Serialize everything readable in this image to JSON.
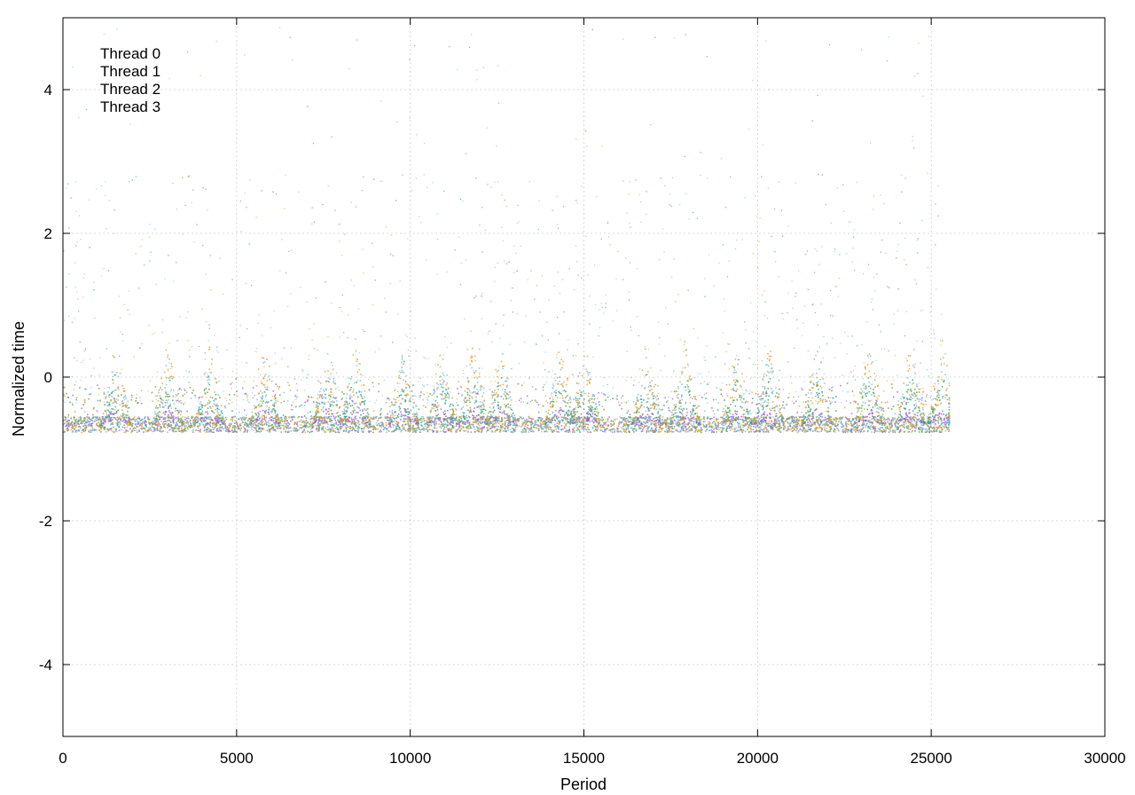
{
  "chart_data": {
    "type": "scatter",
    "title": "",
    "xlabel": "Period",
    "ylabel": "Normalized time",
    "xlim": [
      0,
      30000
    ],
    "ylim": [
      -5,
      5
    ],
    "x_ticks": [
      0,
      5000,
      10000,
      15000,
      20000,
      25000,
      30000
    ],
    "y_ticks": [
      -4,
      -2,
      0,
      2,
      4
    ],
    "x_tick_labels": [
      "0",
      "5000",
      "10000",
      "15000",
      "20000",
      "25000",
      "30000"
    ],
    "y_tick_labels": [
      "-4",
      "-2",
      "0",
      "2",
      "4"
    ],
    "grid": true,
    "legend_position": "top-left",
    "x_range_of_data": [
      0,
      25500
    ],
    "baseline_y": -0.65,
    "series": [
      {
        "name": "Thread 0",
        "color": "#9b59d0",
        "burst_level": 0.2
      },
      {
        "name": "Thread 1",
        "color": "#2a9d73",
        "burst_level": 0.6
      },
      {
        "name": "Thread 2",
        "color": "#6ec0e8",
        "burst_level": 0.9
      },
      {
        "name": "Thread 3",
        "color": "#e0a020",
        "burst_level": 1.0
      }
    ]
  }
}
